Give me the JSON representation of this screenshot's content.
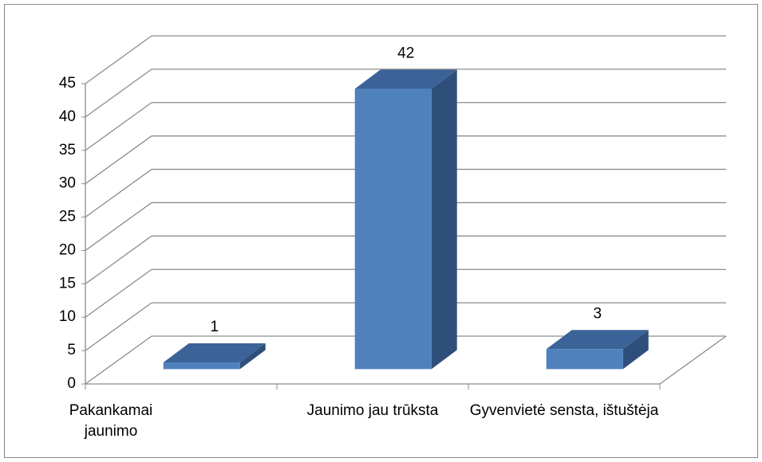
{
  "chart_data": {
    "type": "bar3d",
    "categories": [
      "Pakankamai jaunimo",
      "Jaunimo jau trūksta",
      "Gyvenvietė sensta, ištuštėja"
    ],
    "values": [
      1,
      42,
      3
    ],
    "color": "#4f81bd",
    "ylim": [
      0,
      45
    ],
    "yticks": [
      0,
      5,
      10,
      15,
      20,
      25,
      30,
      35,
      40,
      45
    ],
    "grid": true
  }
}
